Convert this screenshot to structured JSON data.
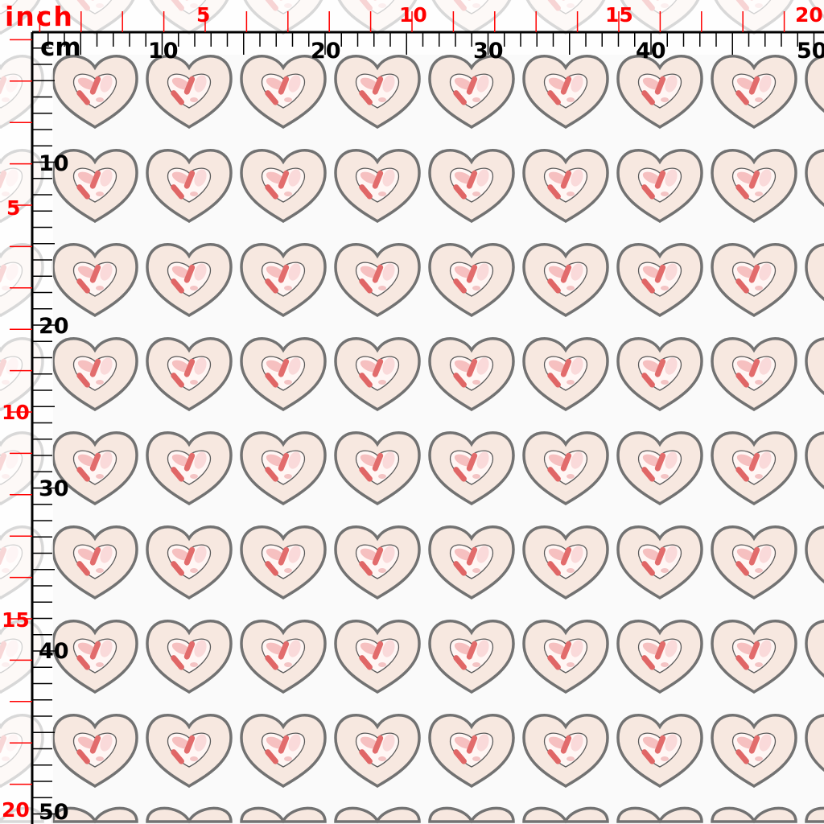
{
  "rulers": {
    "inch_unit": "inch",
    "cm_unit": "cm",
    "top_inch_labels": [
      "5",
      "10",
      "15",
      "20"
    ],
    "top_cm_labels": [
      "10",
      "20",
      "30",
      "40",
      "50"
    ],
    "left_inch_labels": [
      "5",
      "10",
      "15",
      "20"
    ],
    "left_cm_labels": [
      "10",
      "20",
      "30",
      "40",
      "50"
    ],
    "inch_color": "#ff0000",
    "cm_color": "#000000"
  },
  "pattern": {
    "motif": "heart",
    "outline_color": "#6e6e6e",
    "fill_color": "#f7e8e0",
    "inner_accent_colors": [
      "#f4b6b6",
      "#e06a6a",
      "#f7c8c8"
    ]
  }
}
